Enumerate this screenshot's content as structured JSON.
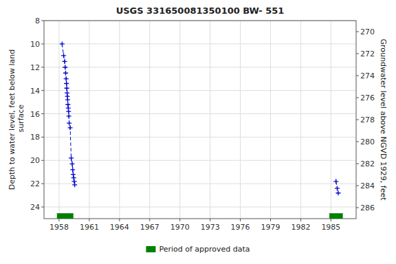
{
  "chart_data": {
    "type": "line",
    "title": "USGS 331650081350100 BW- 551",
    "ylabel": "Depth to water level, feet below land\n surface",
    "y2label": "Groundwater level above NGVD 1929, feet",
    "xlim": [
      1956.5,
      1987.5
    ],
    "ylim": [
      25.0,
      8.0
    ],
    "y2lim": [
      287.0,
      269.0
    ],
    "xticks": [
      1958,
      1961,
      1964,
      1967,
      1970,
      1973,
      1976,
      1979,
      1982,
      1985
    ],
    "yticks": [
      8,
      10,
      12,
      14,
      16,
      18,
      20,
      22,
      24
    ],
    "y2ticks": [
      270,
      272,
      274,
      276,
      278,
      280,
      282,
      284,
      286
    ],
    "grid": true,
    "legend": "bottom",
    "series": [
      {
        "type": "line",
        "color": "#0000cc",
        "line_style": "dashed",
        "marker": "plus",
        "x": [
          1958.3,
          1958.45,
          1958.55,
          1958.6,
          1958.65,
          1958.7,
          1958.73,
          1958.76,
          1958.79,
          1958.82,
          1958.85,
          1958.88,
          1958.91,
          1958.94,
          1958.97,
          1959.0,
          1959.1,
          1959.2,
          1959.3,
          1959.35,
          1959.4,
          1959.45,
          1959.5,
          1959.55
        ],
        "values": [
          10.0,
          11.0,
          11.5,
          12.0,
          12.5,
          13.0,
          13.4,
          13.8,
          14.2,
          14.5,
          14.8,
          15.2,
          15.5,
          15.8,
          16.2,
          16.8,
          17.2,
          19.8,
          20.3,
          20.8,
          21.2,
          21.5,
          21.8,
          22.1
        ]
      },
      {
        "type": "line",
        "color": "#0000cc",
        "line_style": "dashed",
        "marker": "plus",
        "x": [
          1985.5,
          1985.62,
          1985.72
        ],
        "values": [
          21.8,
          22.4,
          22.8
        ]
      },
      {
        "type": "span",
        "name": "Period of approved data",
        "color": "#008000",
        "x": [
          1957.8,
          1984.85
        ],
        "widths": [
          1.6,
          1.3
        ],
        "values": [
          24.55,
          24.55
        ],
        "heights": [
          0.45,
          0.45
        ]
      }
    ]
  }
}
